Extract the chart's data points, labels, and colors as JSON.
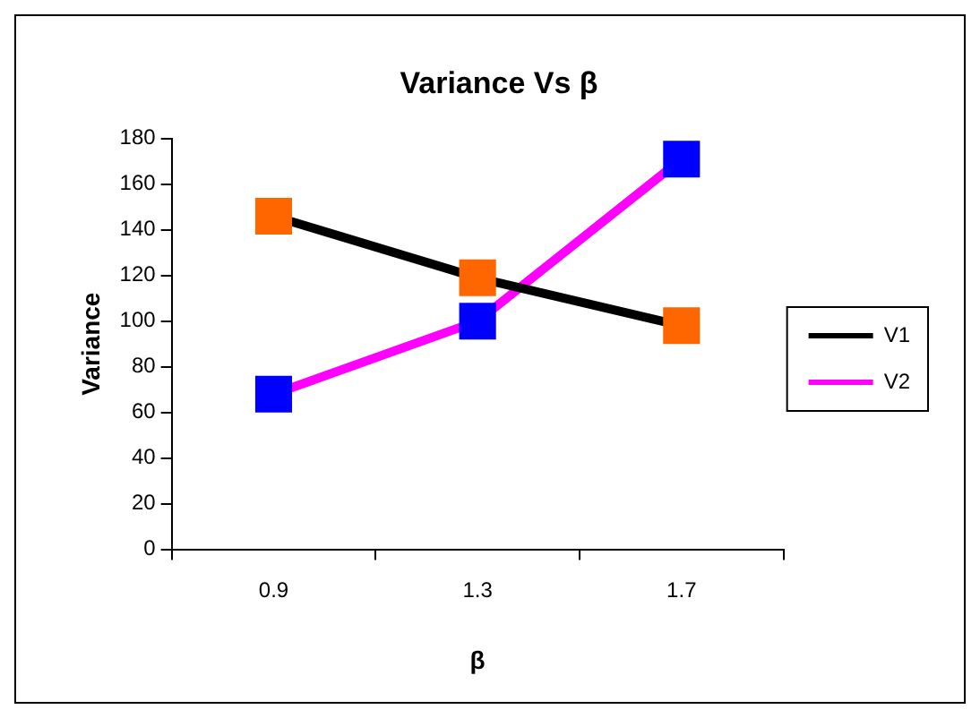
{
  "chart_data": {
    "type": "line",
    "title": "Variance Vs β",
    "xlabel": "β",
    "ylabel": "Variance",
    "categories": [
      "0.9",
      "1.3",
      "1.7"
    ],
    "series": [
      {
        "name": "V1",
        "color": "#000000",
        "colors": [
          "#ff6600",
          "#ff6600",
          "#ff6600"
        ],
        "values": [
          146,
          119,
          98
        ]
      },
      {
        "name": "V2",
        "color": "#ff00ff",
        "colors": [
          "#0000ff",
          "#0000ff",
          "#0000ff"
        ],
        "values": [
          68,
          100,
          171
        ]
      }
    ],
    "ylim": [
      0,
      180
    ],
    "yticks": [
      0,
      20,
      40,
      60,
      80,
      100,
      120,
      140,
      160,
      180
    ],
    "grid": false,
    "legend": "right",
    "marker": "square",
    "line_style": "solid"
  }
}
